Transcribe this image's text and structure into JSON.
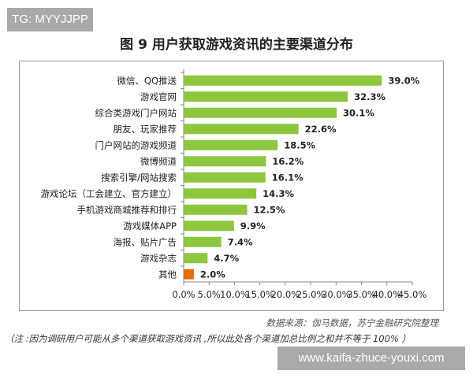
{
  "watermark_top": "TG: MYYJJPP",
  "watermark_bottom": "www.kaifa-zhuce-youxi.com",
  "source": "数据来源：伽马数据，苏宁金融研究院整理",
  "note": "（注 :因为调研用户可能从多个渠道获取游戏资讯 ,所以此处各个渠道加总比例之和并不等于 100% ）",
  "chart_data": {
    "type": "bar",
    "orientation": "horizontal",
    "title": "图 9 用户获取游戏资讯的主要渠道分布",
    "categories": [
      "微信、QQ推送",
      "游戏官网",
      "综合类游戏门户网站",
      "朋友、玩家推荐",
      "门户网站的游戏频道",
      "微博频道",
      "搜索引擎/网站搜索",
      "游戏论坛（工会建立、官方建立）",
      "手机游戏商城推荐和排行",
      "游戏媒体APP",
      "海报、贴片广告",
      "游戏杂志",
      "其他"
    ],
    "values": [
      39.0,
      32.3,
      30.1,
      22.6,
      18.5,
      16.2,
      16.1,
      14.3,
      12.5,
      9.9,
      7.4,
      4.7,
      2.0
    ],
    "data_labels": [
      "39.0%",
      "32.3%",
      "30.1%",
      "22.6%",
      "18.5%",
      "16.2%",
      "16.1%",
      "14.3%",
      "12.5%",
      "9.9%",
      "7.4%",
      "4.7%",
      "2.0%"
    ],
    "xlim": [
      0,
      45
    ],
    "xticks": [
      "0.0%",
      "5.0%",
      "10.0%",
      "15.0%",
      "20.0%",
      "25.0%",
      "30.0%",
      "35.0%",
      "40.0%",
      "45.0%"
    ],
    "grid": false,
    "colors": {
      "default": "#8dc63f",
      "highlight": "#e46c0a"
    },
    "highlight_category": "其他"
  }
}
